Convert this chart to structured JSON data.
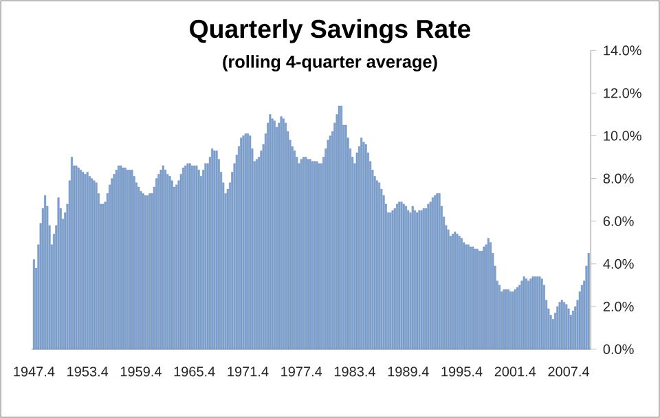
{
  "chart_data": {
    "type": "bar",
    "title": "Quarterly Savings Rate",
    "subtitle": "(rolling 4-quarter average)",
    "categories": [
      "1947.4",
      null,
      null,
      null,
      null,
      null,
      null,
      null,
      null,
      null,
      null,
      null,
      null,
      null,
      null,
      null,
      null,
      null,
      null,
      null,
      null,
      null,
      null,
      null,
      "1953.4",
      null,
      null,
      null,
      null,
      null,
      null,
      null,
      null,
      null,
      null,
      null,
      null,
      null,
      null,
      null,
      null,
      null,
      null,
      null,
      null,
      null,
      null,
      null,
      "1959.4",
      null,
      null,
      null,
      null,
      null,
      null,
      null,
      null,
      null,
      null,
      null,
      null,
      null,
      null,
      null,
      null,
      null,
      null,
      null,
      null,
      null,
      null,
      null,
      "1965.4",
      null,
      null,
      null,
      null,
      null,
      null,
      null,
      null,
      null,
      null,
      null,
      null,
      null,
      null,
      null,
      null,
      null,
      null,
      null,
      null,
      null,
      null,
      null,
      "1971.4",
      null,
      null,
      null,
      null,
      null,
      null,
      null,
      null,
      null,
      null,
      null,
      null,
      null,
      null,
      null,
      null,
      null,
      null,
      null,
      null,
      null,
      null,
      null,
      "1977.4",
      null,
      null,
      null,
      null,
      null,
      null,
      null,
      null,
      null,
      null,
      null,
      null,
      null,
      null,
      null,
      null,
      null,
      null,
      null,
      null,
      null,
      null,
      null,
      "1983.4",
      null,
      null,
      null,
      null,
      null,
      null,
      null,
      null,
      null,
      null,
      null,
      null,
      null,
      null,
      null,
      null,
      null,
      null,
      null,
      null,
      null,
      null,
      null,
      "1989.4",
      null,
      null,
      null,
      null,
      null,
      null,
      null,
      null,
      null,
      null,
      null,
      null,
      null,
      null,
      null,
      null,
      null,
      null,
      null,
      null,
      null,
      null,
      null,
      "1995.4",
      null,
      null,
      null,
      null,
      null,
      null,
      null,
      null,
      null,
      null,
      null,
      null,
      null,
      null,
      null,
      null,
      null,
      null,
      null,
      null,
      null,
      null,
      null,
      "2001.4",
      null,
      null,
      null,
      null,
      null,
      null,
      null,
      null,
      null,
      null,
      null,
      null,
      null,
      null,
      null,
      null,
      null,
      null,
      null,
      null,
      null,
      null,
      null,
      "2007.4",
      null,
      null,
      null,
      null,
      null,
      null,
      null,
      null,
      null
    ],
    "values": [
      4.2,
      3.8,
      4.9,
      5.9,
      6.6,
      7.2,
      6.7,
      5.8,
      4.9,
      5.4,
      5.8,
      7.1,
      6.6,
      6.1,
      6.4,
      6.8,
      7.9,
      9.0,
      8.6,
      8.6,
      8.5,
      8.4,
      8.3,
      8.2,
      8.3,
      8.1,
      8.0,
      7.9,
      7.8,
      7.3,
      6.8,
      6.8,
      6.9,
      7.3,
      7.7,
      8.0,
      8.2,
      8.4,
      8.6,
      8.6,
      8.5,
      8.5,
      8.4,
      8.4,
      8.4,
      8.1,
      7.8,
      7.6,
      7.4,
      7.3,
      7.2,
      7.2,
      7.3,
      7.3,
      7.6,
      8.0,
      8.2,
      8.4,
      8.6,
      8.4,
      8.2,
      8.1,
      7.9,
      7.6,
      7.7,
      7.9,
      8.2,
      8.5,
      8.6,
      8.7,
      8.7,
      8.6,
      8.6,
      8.6,
      8.4,
      8.1,
      8.4,
      8.7,
      8.7,
      9.0,
      9.4,
      9.3,
      9.3,
      8.9,
      8.3,
      7.8,
      7.3,
      7.5,
      7.8,
      8.3,
      8.7,
      9.1,
      9.5,
      9.9,
      10.0,
      10.1,
      10.1,
      10.0,
      9.4,
      8.8,
      8.9,
      9.0,
      9.3,
      9.6,
      10.1,
      10.6,
      11.0,
      10.8,
      10.7,
      10.4,
      10.6,
      10.9,
      10.8,
      10.6,
      10.2,
      9.8,
      9.5,
      9.3,
      9.0,
      8.7,
      8.9,
      9.0,
      9.0,
      8.9,
      8.9,
      8.8,
      8.8,
      8.8,
      8.7,
      8.7,
      9.0,
      9.4,
      9.8,
      10.0,
      10.2,
      10.6,
      11.0,
      11.4,
      11.4,
      10.5,
      10.5,
      9.9,
      9.4,
      9.0,
      8.7,
      9.2,
      9.5,
      9.9,
      9.7,
      9.6,
      9.2,
      8.8,
      8.4,
      8.1,
      7.9,
      7.8,
      7.5,
      7.2,
      6.8,
      6.4,
      6.4,
      6.5,
      6.6,
      6.8,
      6.9,
      6.9,
      6.8,
      6.7,
      6.5,
      6.4,
      6.7,
      6.5,
      6.4,
      6.5,
      6.5,
      6.6,
      6.6,
      6.8,
      6.9,
      7.1,
      7.2,
      7.3,
      7.3,
      6.7,
      6.2,
      5.8,
      5.6,
      5.3,
      5.4,
      5.5,
      5.4,
      5.3,
      5.2,
      5.0,
      4.9,
      4.9,
      4.8,
      4.8,
      4.7,
      4.7,
      4.6,
      4.6,
      4.8,
      4.9,
      5.2,
      5.0,
      4.5,
      3.9,
      3.2,
      3.0,
      2.7,
      2.8,
      2.8,
      2.8,
      2.7,
      2.7,
      2.8,
      2.9,
      3.0,
      3.2,
      3.4,
      3.3,
      3.2,
      3.3,
      3.4,
      3.4,
      3.4,
      3.4,
      3.3,
      3.0,
      2.3,
      1.9,
      1.6,
      1.4,
      1.7,
      2.0,
      2.2,
      2.3,
      2.2,
      2.1,
      1.9,
      1.6,
      1.8,
      2.0,
      2.3,
      2.7,
      3.0,
      3.2,
      3.9,
      4.5
    ],
    "color": "#7da2d4",
    "ylim": [
      0,
      14
    ],
    "yticks": [
      {
        "value": 0,
        "label": "0.0%"
      },
      {
        "value": 2,
        "label": "2.0%"
      },
      {
        "value": 4,
        "label": "4.0%"
      },
      {
        "value": 6,
        "label": "6.0%"
      },
      {
        "value": 8,
        "label": "8.0%"
      },
      {
        "value": 10,
        "label": "10.0%"
      },
      {
        "value": 12,
        "label": "12.0%"
      },
      {
        "value": 14,
        "label": "14.0%"
      }
    ],
    "tick_labels": true
  }
}
